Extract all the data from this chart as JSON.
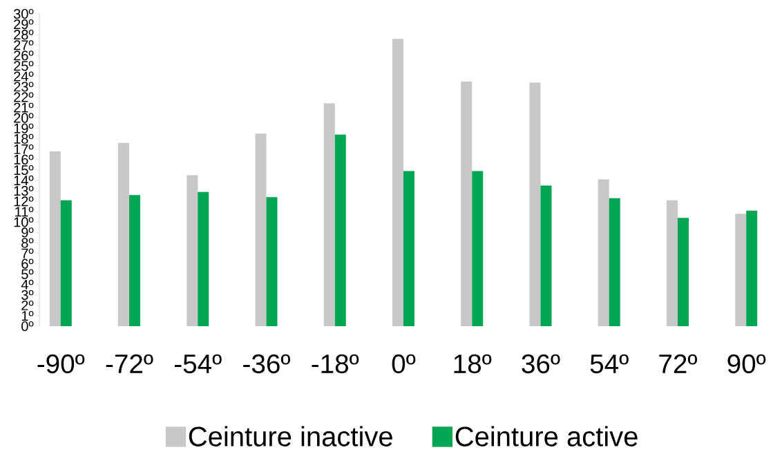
{
  "chart_data": {
    "type": "bar",
    "categories": [
      "-90º",
      "-72º",
      "-54º",
      "-36º",
      "-18º",
      "0º",
      "18º",
      "36º",
      "54º",
      "72º",
      "90º"
    ],
    "series": [
      {
        "name": "Ceinture inactive",
        "color": "#c8c8c8",
        "values": [
          16.8,
          17.6,
          14.5,
          18.5,
          21.4,
          27.6,
          23.5,
          23.4,
          14.1,
          12.1,
          10.8
        ]
      },
      {
        "name": "Ceinture active",
        "color": "#00a651",
        "values": [
          12.1,
          12.6,
          12.9,
          12.4,
          18.4,
          14.9,
          14.9,
          13.5,
          12.3,
          10.4,
          11.1
        ]
      }
    ],
    "ylim": [
      0,
      30
    ],
    "yticks": [
      {
        "value": 0,
        "label": "0º"
      },
      {
        "value": 1,
        "label": "1º"
      },
      {
        "value": 2,
        "label": "2º"
      },
      {
        "value": 3,
        "label": "3º"
      },
      {
        "value": 4,
        "label": "4º"
      },
      {
        "value": 5,
        "label": "5º"
      },
      {
        "value": 6,
        "label": "6º"
      },
      {
        "value": 7,
        "label": "7º"
      },
      {
        "value": 8,
        "label": "8º"
      },
      {
        "value": 9,
        "label": "9º"
      },
      {
        "value": 10,
        "label": "10º"
      },
      {
        "value": 11,
        "label": "11º"
      },
      {
        "value": 12,
        "label": "12º"
      },
      {
        "value": 13,
        "label": "13º"
      },
      {
        "value": 14,
        "label": "14º"
      },
      {
        "value": 15,
        "label": "15º"
      },
      {
        "value": 16,
        "label": "16º"
      },
      {
        "value": 17,
        "label": "17º"
      },
      {
        "value": 18,
        "label": "18º"
      },
      {
        "value": 19,
        "label": "19º"
      },
      {
        "value": 20,
        "label": "20º"
      },
      {
        "value": 21,
        "label": "21º"
      },
      {
        "value": 22,
        "label": "22º"
      },
      {
        "value": 23,
        "label": "23º"
      },
      {
        "value": 24,
        "label": "24º"
      },
      {
        "value": 25,
        "label": "25º"
      },
      {
        "value": 26,
        "label": "26º"
      },
      {
        "value": 27,
        "label": "27º"
      },
      {
        "value": 28,
        "label": "28º"
      },
      {
        "value": 29,
        "label": "29º"
      },
      {
        "value": 30,
        "label": "30º"
      }
    ],
    "grid": false,
    "legend": "bottom"
  }
}
